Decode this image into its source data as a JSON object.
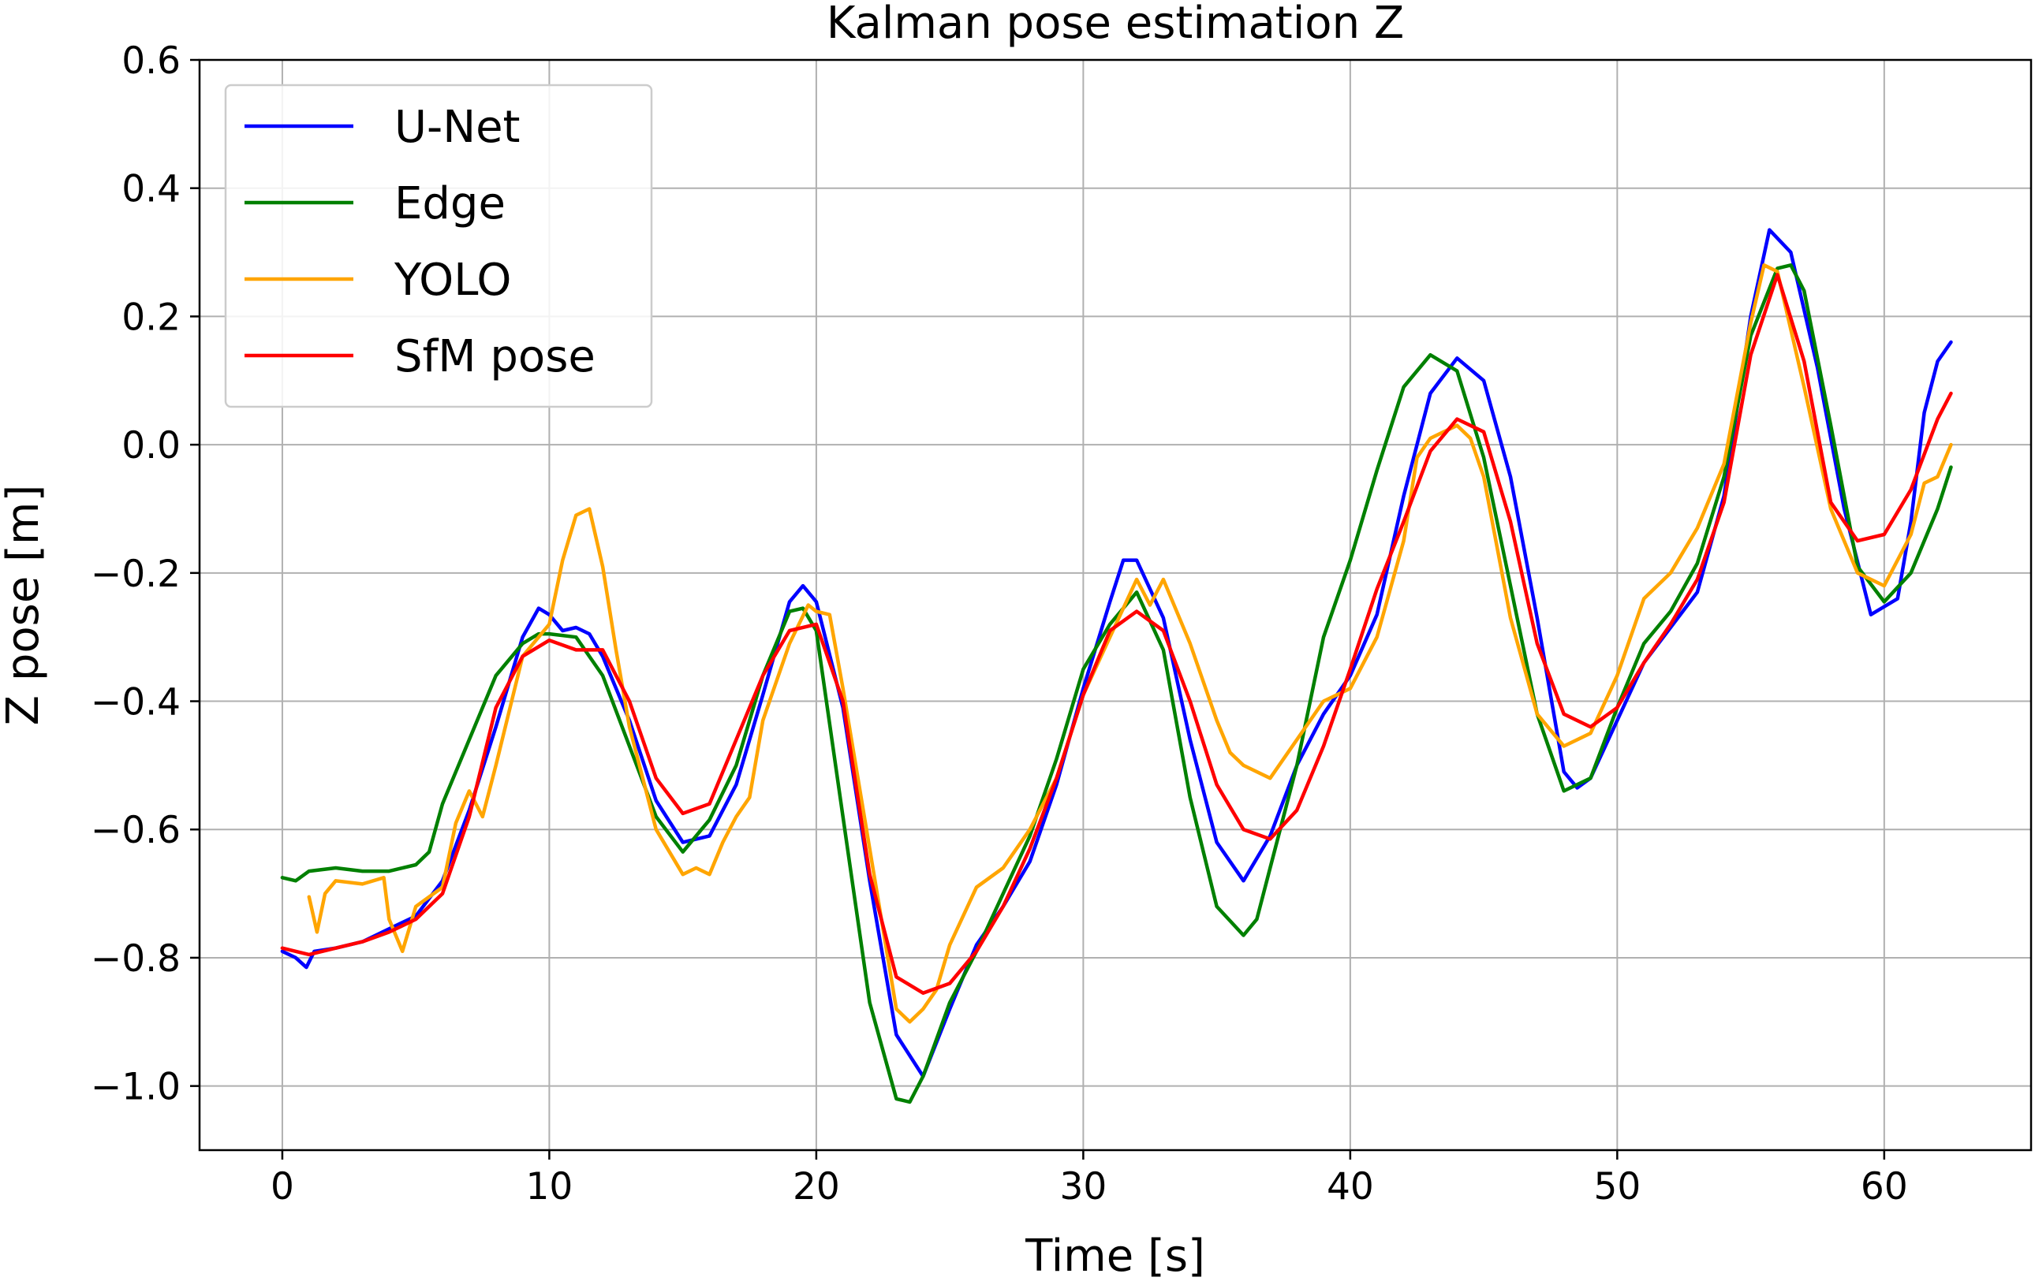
{
  "chart_data": {
    "type": "line",
    "title": "Kalman pose estimation Z",
    "xlabel": "Time [s]",
    "ylabel": "Z pose [m]",
    "xlim": [
      -3.1,
      65.5
    ],
    "ylim": [
      -1.1,
      0.6
    ],
    "xticks": [
      0,
      10,
      20,
      30,
      40,
      50,
      60
    ],
    "xtick_labels": [
      "0",
      "10",
      "20",
      "30",
      "40",
      "50",
      "60"
    ],
    "yticks": [
      0.6,
      0.4,
      0.2,
      0.0,
      -0.2,
      -0.4,
      -0.6,
      -0.8,
      -1.0
    ],
    "ytick_labels": [
      "0.6",
      "0.4",
      "0.2",
      "0.0",
      "−0.2",
      "−0.4",
      "−0.6",
      "−0.8",
      "−1.0"
    ],
    "grid": true,
    "legend_position": "top-left",
    "series": [
      {
        "name": "U-Net",
        "color": "#0000ff",
        "points": [
          [
            0,
            -0.79
          ],
          [
            0.5,
            -0.8
          ],
          [
            0.9,
            -0.815
          ],
          [
            1.2,
            -0.79
          ],
          [
            2,
            -0.785
          ],
          [
            3,
            -0.775
          ],
          [
            4,
            -0.755
          ],
          [
            5,
            -0.735
          ],
          [
            6,
            -0.68
          ],
          [
            7,
            -0.57
          ],
          [
            8,
            -0.44
          ],
          [
            9,
            -0.3
          ],
          [
            9.6,
            -0.255
          ],
          [
            10,
            -0.265
          ],
          [
            10.5,
            -0.29
          ],
          [
            11,
            -0.285
          ],
          [
            11.5,
            -0.295
          ],
          [
            12,
            -0.33
          ],
          [
            13,
            -0.43
          ],
          [
            14,
            -0.555
          ],
          [
            15,
            -0.62
          ],
          [
            16,
            -0.61
          ],
          [
            17,
            -0.53
          ],
          [
            18,
            -0.39
          ],
          [
            19,
            -0.245
          ],
          [
            19.5,
            -0.22
          ],
          [
            20,
            -0.245
          ],
          [
            21,
            -0.41
          ],
          [
            22,
            -0.68
          ],
          [
            23,
            -0.92
          ],
          [
            24,
            -0.985
          ],
          [
            25,
            -0.88
          ],
          [
            26,
            -0.78
          ],
          [
            27,
            -0.72
          ],
          [
            28,
            -0.65
          ],
          [
            29,
            -0.53
          ],
          [
            30,
            -0.38
          ],
          [
            31,
            -0.245
          ],
          [
            31.5,
            -0.18
          ],
          [
            32,
            -0.18
          ],
          [
            33,
            -0.27
          ],
          [
            34,
            -0.46
          ],
          [
            35,
            -0.62
          ],
          [
            36,
            -0.68
          ],
          [
            37,
            -0.61
          ],
          [
            38,
            -0.5
          ],
          [
            39,
            -0.42
          ],
          [
            40,
            -0.36
          ],
          [
            41,
            -0.265
          ],
          [
            42,
            -0.08
          ],
          [
            43,
            0.08
          ],
          [
            44,
            0.135
          ],
          [
            45,
            0.1
          ],
          [
            46,
            -0.05
          ],
          [
            47,
            -0.27
          ],
          [
            48,
            -0.51
          ],
          [
            48.5,
            -0.535
          ],
          [
            49,
            -0.52
          ],
          [
            50,
            -0.43
          ],
          [
            51,
            -0.34
          ],
          [
            52,
            -0.285
          ],
          [
            53,
            -0.23
          ],
          [
            54,
            -0.08
          ],
          [
            55,
            0.2
          ],
          [
            55.7,
            0.335
          ],
          [
            56.5,
            0.3
          ],
          [
            57.5,
            0.12
          ],
          [
            58.5,
            -0.1
          ],
          [
            59.5,
            -0.265
          ],
          [
            60.5,
            -0.24
          ],
          [
            61,
            -0.12
          ],
          [
            61.5,
            0.05
          ],
          [
            62,
            0.13
          ],
          [
            62.5,
            0.16
          ]
        ]
      },
      {
        "name": "Edge",
        "color": "#008000",
        "points": [
          [
            0,
            -0.675
          ],
          [
            0.5,
            -0.68
          ],
          [
            1,
            -0.665
          ],
          [
            2,
            -0.66
          ],
          [
            3,
            -0.665
          ],
          [
            4,
            -0.665
          ],
          [
            5,
            -0.655
          ],
          [
            5.5,
            -0.635
          ],
          [
            6,
            -0.56
          ],
          [
            7,
            -0.46
          ],
          [
            8,
            -0.36
          ],
          [
            9,
            -0.31
          ],
          [
            9.6,
            -0.295
          ],
          [
            10,
            -0.295
          ],
          [
            11,
            -0.3
          ],
          [
            11.5,
            -0.33
          ],
          [
            12,
            -0.36
          ],
          [
            13,
            -0.47
          ],
          [
            14,
            -0.58
          ],
          [
            15,
            -0.635
          ],
          [
            16,
            -0.585
          ],
          [
            17,
            -0.5
          ],
          [
            18,
            -0.36
          ],
          [
            19,
            -0.26
          ],
          [
            19.5,
            -0.255
          ],
          [
            20,
            -0.29
          ],
          [
            21,
            -0.58
          ],
          [
            22,
            -0.87
          ],
          [
            23,
            -1.02
          ],
          [
            23.5,
            -1.025
          ],
          [
            24,
            -0.985
          ],
          [
            25,
            -0.87
          ],
          [
            26,
            -0.79
          ],
          [
            27,
            -0.7
          ],
          [
            28,
            -0.61
          ],
          [
            29,
            -0.49
          ],
          [
            30,
            -0.35
          ],
          [
            31,
            -0.28
          ],
          [
            32,
            -0.23
          ],
          [
            33,
            -0.32
          ],
          [
            34,
            -0.55
          ],
          [
            35,
            -0.72
          ],
          [
            36,
            -0.765
          ],
          [
            36.5,
            -0.74
          ],
          [
            37,
            -0.66
          ],
          [
            38,
            -0.5
          ],
          [
            39,
            -0.3
          ],
          [
            40,
            -0.18
          ],
          [
            41,
            -0.04
          ],
          [
            42,
            0.09
          ],
          [
            43,
            0.14
          ],
          [
            44,
            0.115
          ],
          [
            45,
            -0.02
          ],
          [
            46,
            -0.22
          ],
          [
            47,
            -0.42
          ],
          [
            48,
            -0.54
          ],
          [
            49,
            -0.52
          ],
          [
            50,
            -0.41
          ],
          [
            51,
            -0.31
          ],
          [
            52,
            -0.26
          ],
          [
            53,
            -0.185
          ],
          [
            54,
            -0.05
          ],
          [
            55,
            0.17
          ],
          [
            56,
            0.275
          ],
          [
            56.5,
            0.28
          ],
          [
            57,
            0.24
          ],
          [
            58,
            0.03
          ],
          [
            59,
            -0.19
          ],
          [
            60,
            -0.245
          ],
          [
            61,
            -0.2
          ],
          [
            62,
            -0.1
          ],
          [
            62.5,
            -0.035
          ]
        ]
      },
      {
        "name": "YOLO",
        "color": "#ffa500",
        "points": [
          [
            1,
            -0.705
          ],
          [
            1.3,
            -0.76
          ],
          [
            1.6,
            -0.7
          ],
          [
            2,
            -0.68
          ],
          [
            3,
            -0.685
          ],
          [
            3.8,
            -0.675
          ],
          [
            4,
            -0.74
          ],
          [
            4.5,
            -0.79
          ],
          [
            5,
            -0.72
          ],
          [
            6,
            -0.69
          ],
          [
            6.5,
            -0.59
          ],
          [
            7,
            -0.54
          ],
          [
            7.5,
            -0.58
          ],
          [
            8,
            -0.5
          ],
          [
            9,
            -0.33
          ],
          [
            10,
            -0.28
          ],
          [
            10.5,
            -0.18
          ],
          [
            11,
            -0.11
          ],
          [
            11.5,
            -0.1
          ],
          [
            12,
            -0.19
          ],
          [
            12.5,
            -0.32
          ],
          [
            13,
            -0.44
          ],
          [
            13.5,
            -0.52
          ],
          [
            14,
            -0.6
          ],
          [
            15,
            -0.67
          ],
          [
            15.5,
            -0.66
          ],
          [
            16,
            -0.67
          ],
          [
            16.5,
            -0.62
          ],
          [
            17,
            -0.58
          ],
          [
            17.5,
            -0.55
          ],
          [
            18,
            -0.43
          ],
          [
            19,
            -0.31
          ],
          [
            19.7,
            -0.25
          ],
          [
            20,
            -0.26
          ],
          [
            20.5,
            -0.265
          ],
          [
            21,
            -0.38
          ],
          [
            22,
            -0.63
          ],
          [
            23,
            -0.88
          ],
          [
            23.5,
            -0.9
          ],
          [
            24,
            -0.88
          ],
          [
            24.5,
            -0.85
          ],
          [
            25,
            -0.78
          ],
          [
            26,
            -0.69
          ],
          [
            27,
            -0.66
          ],
          [
            28,
            -0.6
          ],
          [
            29,
            -0.52
          ],
          [
            30,
            -0.39
          ],
          [
            31,
            -0.3
          ],
          [
            32,
            -0.21
          ],
          [
            32.5,
            -0.25
          ],
          [
            33,
            -0.21
          ],
          [
            34,
            -0.31
          ],
          [
            35,
            -0.43
          ],
          [
            35.5,
            -0.48
          ],
          [
            36,
            -0.5
          ],
          [
            37,
            -0.52
          ],
          [
            38,
            -0.46
          ],
          [
            39,
            -0.4
          ],
          [
            40,
            -0.38
          ],
          [
            41,
            -0.3
          ],
          [
            42,
            -0.15
          ],
          [
            42.5,
            -0.02
          ],
          [
            43,
            0.01
          ],
          [
            43.5,
            0.02
          ],
          [
            44,
            0.03
          ],
          [
            44.5,
            0.01
          ],
          [
            45,
            -0.05
          ],
          [
            46,
            -0.27
          ],
          [
            47,
            -0.42
          ],
          [
            48,
            -0.47
          ],
          [
            49,
            -0.45
          ],
          [
            50,
            -0.36
          ],
          [
            51,
            -0.24
          ],
          [
            52,
            -0.2
          ],
          [
            53,
            -0.13
          ],
          [
            54,
            -0.03
          ],
          [
            55,
            0.19
          ],
          [
            55.5,
            0.28
          ],
          [
            56,
            0.27
          ],
          [
            57,
            0.09
          ],
          [
            58,
            -0.1
          ],
          [
            59,
            -0.2
          ],
          [
            60,
            -0.22
          ],
          [
            61,
            -0.14
          ],
          [
            61.5,
            -0.06
          ],
          [
            62,
            -0.05
          ],
          [
            62.5,
            0.0
          ]
        ]
      },
      {
        "name": "SfM pose",
        "color": "#ff0000",
        "points": [
          [
            0,
            -0.785
          ],
          [
            1,
            -0.795
          ],
          [
            2,
            -0.785
          ],
          [
            3,
            -0.775
          ],
          [
            4,
            -0.76
          ],
          [
            5,
            -0.74
          ],
          [
            6,
            -0.7
          ],
          [
            7,
            -0.58
          ],
          [
            8,
            -0.41
          ],
          [
            9,
            -0.33
          ],
          [
            10,
            -0.305
          ],
          [
            11,
            -0.32
          ],
          [
            12,
            -0.32
          ],
          [
            13,
            -0.4
          ],
          [
            14,
            -0.52
          ],
          [
            15,
            -0.575
          ],
          [
            16,
            -0.56
          ],
          [
            17,
            -0.46
          ],
          [
            18,
            -0.36
          ],
          [
            19,
            -0.29
          ],
          [
            20,
            -0.28
          ],
          [
            21,
            -0.4
          ],
          [
            22,
            -0.67
          ],
          [
            23,
            -0.83
          ],
          [
            24,
            -0.855
          ],
          [
            25,
            -0.84
          ],
          [
            26,
            -0.79
          ],
          [
            27,
            -0.72
          ],
          [
            28,
            -0.63
          ],
          [
            29,
            -0.52
          ],
          [
            30,
            -0.39
          ],
          [
            31,
            -0.29
          ],
          [
            32,
            -0.26
          ],
          [
            33,
            -0.29
          ],
          [
            34,
            -0.4
          ],
          [
            35,
            -0.53
          ],
          [
            36,
            -0.6
          ],
          [
            37,
            -0.615
          ],
          [
            38,
            -0.57
          ],
          [
            39,
            -0.47
          ],
          [
            40,
            -0.35
          ],
          [
            41,
            -0.225
          ],
          [
            42,
            -0.12
          ],
          [
            43,
            -0.01
          ],
          [
            44,
            0.04
          ],
          [
            45,
            0.02
          ],
          [
            46,
            -0.12
          ],
          [
            47,
            -0.31
          ],
          [
            48,
            -0.42
          ],
          [
            49,
            -0.44
          ],
          [
            50,
            -0.41
          ],
          [
            51,
            -0.34
          ],
          [
            52,
            -0.28
          ],
          [
            53,
            -0.21
          ],
          [
            54,
            -0.09
          ],
          [
            55,
            0.14
          ],
          [
            56,
            0.265
          ],
          [
            57,
            0.13
          ],
          [
            58,
            -0.09
          ],
          [
            59,
            -0.15
          ],
          [
            60,
            -0.14
          ],
          [
            61,
            -0.07
          ],
          [
            62,
            0.04
          ],
          [
            62.5,
            0.08
          ]
        ]
      }
    ]
  }
}
